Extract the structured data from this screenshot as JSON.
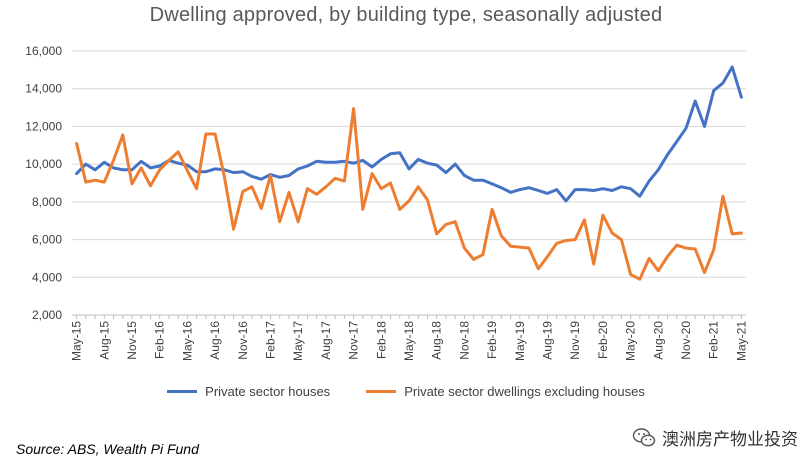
{
  "colors": {
    "series1": "#4472C4",
    "series2": "#ED7D31",
    "grid": "#d9d9d9",
    "axis": "#bfbfbf"
  },
  "source": "Source: ABS, Wealth Pi Fund",
  "watermark": {
    "text": "澳洲房产物业投资",
    "icon": "wechat-logo-icon"
  },
  "chart_data": {
    "type": "line",
    "title": "Dwelling approved, by building type, seasonally adjusted",
    "xlabel": "",
    "ylabel": "",
    "ylim": [
      2000,
      16000
    ],
    "yticks": [
      "2,000",
      "4,000",
      "6,000",
      "8,000",
      "10,000",
      "12,000",
      "14,000",
      "16,000"
    ],
    "ytick_values": [
      2000,
      4000,
      6000,
      8000,
      10000,
      12000,
      14000,
      16000
    ],
    "grid": true,
    "legend": "bottom",
    "x": [
      "May-15",
      "Jun-15",
      "Jul-15",
      "Aug-15",
      "Sep-15",
      "Oct-15",
      "Nov-15",
      "Dec-15",
      "Jan-16",
      "Feb-16",
      "Mar-16",
      "Apr-16",
      "May-16",
      "Jun-16",
      "Jul-16",
      "Aug-16",
      "Sep-16",
      "Oct-16",
      "Nov-16",
      "Dec-16",
      "Jan-17",
      "Feb-17",
      "Mar-17",
      "Apr-17",
      "May-17",
      "Jun-17",
      "Jul-17",
      "Aug-17",
      "Sep-17",
      "Oct-17",
      "Nov-17",
      "Dec-17",
      "Jan-18",
      "Feb-18",
      "Mar-18",
      "Apr-18",
      "May-18",
      "Jun-18",
      "Jul-18",
      "Aug-18",
      "Sep-18",
      "Oct-18",
      "Nov-18",
      "Dec-18",
      "Jan-19",
      "Feb-19",
      "Mar-19",
      "Apr-19",
      "May-19",
      "Jun-19",
      "Jul-19",
      "Aug-19",
      "Sep-19",
      "Oct-19",
      "Nov-19",
      "Dec-19",
      "Jan-20",
      "Feb-20",
      "Mar-20",
      "Apr-20",
      "May-20",
      "Jun-20",
      "Jul-20",
      "Aug-20",
      "Sep-20",
      "Oct-20",
      "Nov-20",
      "Dec-20",
      "Jan-21",
      "Feb-21",
      "Mar-21",
      "Apr-21",
      "May-21"
    ],
    "x_tick_labels": [
      "May-15",
      "Aug-15",
      "Nov-15",
      "Feb-16",
      "May-16",
      "Aug-16",
      "Nov-16",
      "Feb-17",
      "May-17",
      "Aug-17",
      "Nov-17",
      "Feb-18",
      "May-18",
      "Aug-18",
      "Nov-18",
      "Feb-19",
      "May-19",
      "Aug-19",
      "Nov-19",
      "Feb-20",
      "May-20",
      "Aug-20",
      "Nov-20",
      "Feb-21",
      "May-21"
    ],
    "series": [
      {
        "name": "Private sector houses",
        "values": [
          9500,
          10000,
          9700,
          10100,
          9800,
          9700,
          9700,
          10150,
          9800,
          9900,
          10200,
          10050,
          9950,
          9600,
          9600,
          9750,
          9700,
          9550,
          9600,
          9350,
          9200,
          9450,
          9300,
          9400,
          9750,
          9900,
          10150,
          10100,
          10100,
          10150,
          10050,
          10200,
          9850,
          10250,
          10550,
          10600,
          9750,
          10250,
          10050,
          9950,
          9550,
          10000,
          9400,
          9150,
          9150,
          8950,
          8750,
          8500,
          8650,
          8750,
          8600,
          8450,
          8650,
          8050,
          8650,
          8650,
          8600,
          8700,
          8600,
          8800,
          8700,
          8300,
          9100,
          9700,
          10500,
          11200,
          11900,
          13350,
          12000,
          13900,
          14300,
          15150,
          13550
        ]
      },
      {
        "name": "Private sector dwellings excluding houses",
        "values": [
          11100,
          9050,
          9150,
          9050,
          10200,
          11550,
          8950,
          9800,
          8850,
          9700,
          10200,
          10650,
          9650,
          8700,
          11600,
          11600,
          9350,
          6550,
          8550,
          8800,
          7650,
          9400,
          6950,
          8500,
          6950,
          8700,
          8400,
          8800,
          9250,
          9100,
          12950,
          7600,
          9500,
          8700,
          9000,
          7600,
          8050,
          8800,
          8100,
          6300,
          6800,
          6950,
          5550,
          4950,
          5200,
          7600,
          6200,
          5650,
          5600,
          5550,
          4450,
          5100,
          5800,
          5950,
          6000,
          7050,
          4700,
          7300,
          6350,
          6000,
          4150,
          3900,
          5000,
          4350,
          5100,
          5700,
          5550,
          5500,
          4250,
          5450,
          8300,
          6300,
          6350
        ]
      }
    ]
  }
}
